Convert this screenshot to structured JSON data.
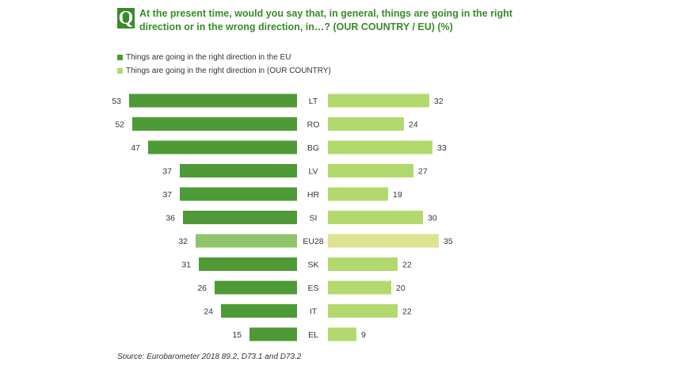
{
  "question_badge": "Q",
  "title": "At the present time, would you say that, in general, things are going in the right direction or in the wrong direction, in…? (OUR COUNTRY / EU) (%)",
  "legend": [
    {
      "label": "Things are going in the right direction in the EU",
      "color": "#4e9a36"
    },
    {
      "label": "Things are going in the right direction in (OUR COUNTRY)",
      "color": "#b2d96d"
    }
  ],
  "source": "Source: Eurobarometer 2018 89.2, D73.1 and D73.2",
  "colors": {
    "eu": "#4e9a36",
    "eu_highlight": "#8fc46a",
    "country": "#b2d96d",
    "country_highlight": "#dfe28f",
    "text": "#333333"
  },
  "chart_data": {
    "type": "bar",
    "orientation": "horizontal",
    "layout": "butterfly",
    "categories": [
      "LT",
      "RO",
      "BG",
      "LV",
      "HR",
      "SI",
      "EU28",
      "SK",
      "ES",
      "IT",
      "EL"
    ],
    "highlight_category": "EU28",
    "series": [
      {
        "name": "Things are going in the right direction in the EU",
        "values": [
          53,
          52,
          47,
          37,
          37,
          36,
          32,
          31,
          26,
          24,
          15
        ]
      },
      {
        "name": "Things are going in the right direction in (OUR COUNTRY)",
        "values": [
          32,
          24,
          33,
          27,
          19,
          30,
          35,
          22,
          20,
          22,
          9
        ]
      }
    ],
    "value_labels": {
      "eu": [
        "53",
        "52",
        "47",
        "37",
        "37",
        "36",
        "32",
        "31",
        "26",
        "24",
        "15"
      ],
      "country": [
        "32",
        "24",
        "33",
        "27",
        "19",
        "30",
        "35",
        "22",
        "20",
        "22",
        "9"
      ]
    },
    "xlim": [
      0,
      53
    ]
  }
}
